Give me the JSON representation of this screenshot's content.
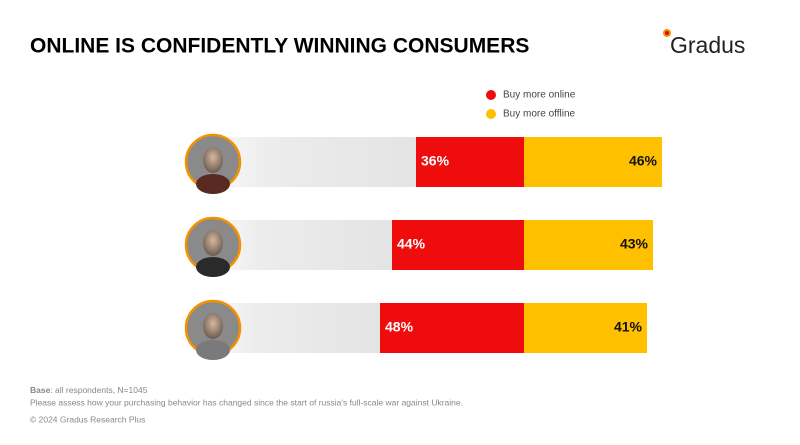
{
  "chart_data": {
    "type": "diverging-bar",
    "title": "ONLINE IS CONFIDENTLY WINNING CONSUMERS",
    "brand": "Gradus",
    "categories": [
      null,
      null,
      null
    ],
    "series": [
      {
        "name": "Buy more online",
        "color": "#ee0c0c",
        "values": [
          36,
          44,
          48
        ],
        "value_labels": [
          "36%",
          "44%",
          "48%"
        ]
      },
      {
        "name": "Buy more offline",
        "color": "#ffc000",
        "values": [
          46,
          43,
          41
        ],
        "value_labels": [
          "46%",
          "43%",
          "41%"
        ]
      }
    ],
    "notes": {
      "base_label": "Base",
      "base_text": ": all respondents, N=1045",
      "question": "Please assess how your purchasing behavior has changed since the start of russia's full-scale war against Ukraine.",
      "copyright": "© 2024 Gradus Research Plus"
    }
  }
}
